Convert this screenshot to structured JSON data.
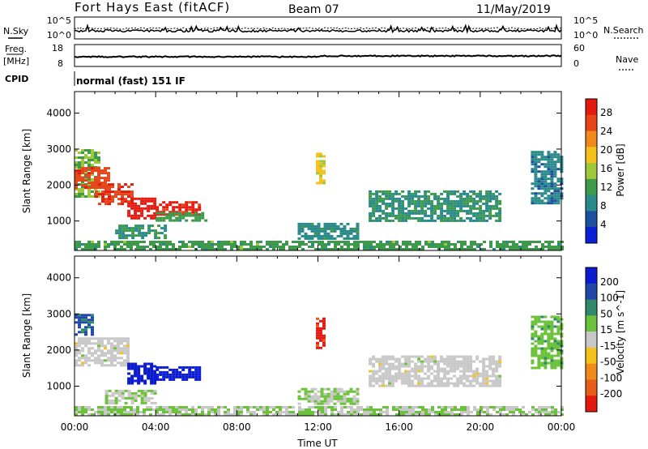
{
  "header": {
    "station": "Fort Hays East (fitACF)",
    "beam": "Beam 07",
    "date": "11/May/2019",
    "mode": "normal (fast) 151 IF"
  },
  "side_labels": {
    "nsky": "N.Sky",
    "nsearch": "N.Search",
    "freq_top": "Freq.",
    "freq_bottom": "[MHz]",
    "nave": "Nave",
    "cpid": "CPID"
  },
  "strip_ticks": {
    "noise_left": [
      "10^5",
      "10^0"
    ],
    "noise_right": [
      "10^5",
      "10^0"
    ],
    "freq_left": [
      "18",
      "8"
    ],
    "nave_right": [
      "60",
      "0"
    ]
  },
  "colors": {
    "power_scale": [
      "#0b1fd8",
      "#1d4fa0",
      "#2a8a8a",
      "#3c9a4a",
      "#9ec93c",
      "#f5c21b",
      "#f08a1a",
      "#e6461a",
      "#e51a0f"
    ],
    "velocity_scale": [
      "#0a1bd0",
      "#1f48a8",
      "#2e8a6b",
      "#6cc23a",
      "#c8c8c8",
      "#f5c21b",
      "#f08a1a",
      "#e65e1a",
      "#e51a0f"
    ]
  },
  "chart_data": [
    {
      "type": "heatmap",
      "panel": "power",
      "ylabel": "Slant Range [km]",
      "xlabel": "Time UT",
      "x_ticks": [
        "00:00",
        "04:00",
        "08:00",
        "12:00",
        "16:00",
        "20:00",
        "00:00"
      ],
      "x_range_hours": [
        0,
        24
      ],
      "y_ticks": [
        1000,
        2000,
        3000,
        4000
      ],
      "ylim": [
        180,
        4600
      ],
      "colorbar": {
        "label": "Power [dB]",
        "ticks": [
          4,
          8,
          12,
          16,
          20,
          24,
          28
        ],
        "range": [
          0,
          31
        ]
      },
      "regions": [
        {
          "t0": 0.0,
          "t1": 1.2,
          "r0": 1700,
          "r1": 3000,
          "value": 14
        },
        {
          "t0": 0.0,
          "t1": 1.6,
          "r0": 1950,
          "r1": 2500,
          "value": 26
        },
        {
          "t0": 1.0,
          "t1": 2.8,
          "r0": 1450,
          "r1": 2050,
          "value": 27
        },
        {
          "t0": 2.6,
          "t1": 4.0,
          "r0": 1050,
          "r1": 1650,
          "value": 30
        },
        {
          "t0": 4.0,
          "t1": 6.2,
          "r0": 1150,
          "r1": 1550,
          "value": 29
        },
        {
          "t0": 4.0,
          "t1": 6.4,
          "r0": 1000,
          "r1": 1250,
          "value": 12
        },
        {
          "t0": 2.0,
          "t1": 4.5,
          "r0": 500,
          "r1": 900,
          "value": 10
        },
        {
          "t0": 11.0,
          "t1": 14.0,
          "r0": 500,
          "r1": 950,
          "value": 9
        },
        {
          "t0": 11.9,
          "t1": 12.3,
          "r0": 2050,
          "r1": 2900,
          "value": 18
        },
        {
          "t0": 14.5,
          "t1": 21.0,
          "r0": 1000,
          "r1": 1850,
          "value": 10
        },
        {
          "t0": 22.5,
          "t1": 24.0,
          "r0": 1500,
          "r1": 2950,
          "value": 8
        },
        {
          "t0": 0.0,
          "t1": 24.0,
          "r0": 200,
          "r1": 450,
          "value": 12
        }
      ]
    },
    {
      "type": "heatmap",
      "panel": "velocity",
      "ylabel": "Slant Range [km]",
      "xlabel": "Time UT",
      "x_ticks": [
        "00:00",
        "04:00",
        "08:00",
        "12:00",
        "16:00",
        "20:00",
        "00:00"
      ],
      "x_range_hours": [
        0,
        24
      ],
      "y_ticks": [
        1000,
        2000,
        3000,
        4000
      ],
      "ylim": [
        180,
        4600
      ],
      "colorbar": {
        "label": "Velocity [m s^-1]",
        "ticks": [
          200,
          100,
          50,
          15,
          -15,
          -50,
          -100,
          -200
        ],
        "range": [
          -250,
          250
        ]
      },
      "regions": [
        {
          "t0": 0.0,
          "t1": 0.8,
          "r0": 2400,
          "r1": 3000,
          "value": 150
        },
        {
          "t0": 0.0,
          "t1": 2.6,
          "r0": 1600,
          "r1": 2350,
          "value": 0
        },
        {
          "t0": 2.6,
          "t1": 4.0,
          "r0": 1050,
          "r1": 1650,
          "value": 240
        },
        {
          "t0": 4.0,
          "t1": 6.2,
          "r0": 1150,
          "r1": 1550,
          "value": 230
        },
        {
          "t0": 1.5,
          "t1": 4.0,
          "r0": 500,
          "r1": 900,
          "value": 30
        },
        {
          "t0": 11.0,
          "t1": 14.0,
          "r0": 500,
          "r1": 950,
          "value": 30
        },
        {
          "t0": 11.9,
          "t1": 12.3,
          "r0": 2050,
          "r1": 2900,
          "value": -220
        },
        {
          "t0": 14.5,
          "t1": 21.0,
          "r0": 1000,
          "r1": 1850,
          "value": 0
        },
        {
          "t0": 22.5,
          "t1": 24.0,
          "r0": 1500,
          "r1": 2950,
          "value": 60
        },
        {
          "t0": 0.0,
          "t1": 24.0,
          "r0": 200,
          "r1": 450,
          "value": 25
        }
      ]
    }
  ]
}
